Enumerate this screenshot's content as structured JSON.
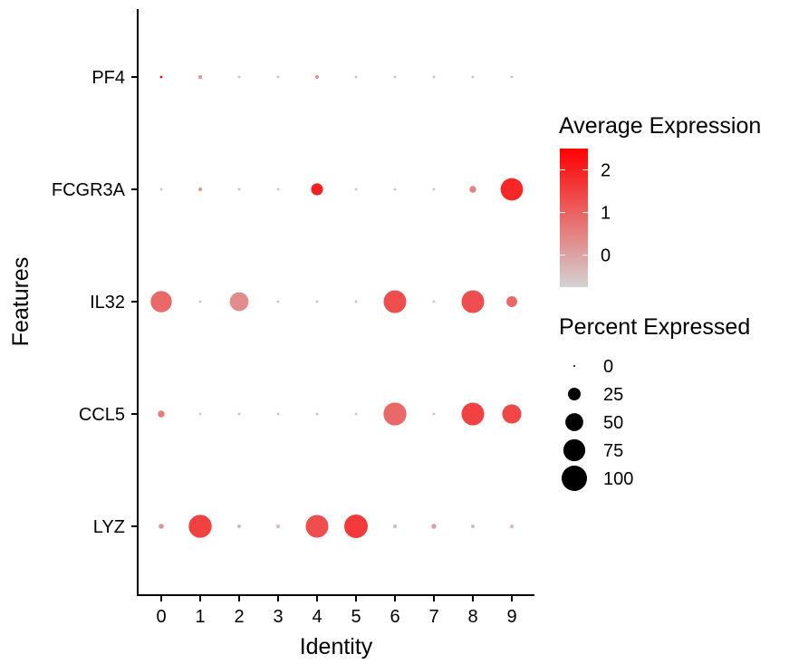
{
  "chart_data": {
    "type": "dotplot",
    "title": "",
    "xlabel": "Identity",
    "ylabel": "Features",
    "x_categories": [
      "0",
      "1",
      "2",
      "3",
      "4",
      "5",
      "6",
      "7",
      "8",
      "9"
    ],
    "y_categories": [
      "LYZ",
      "CCL5",
      "IL32",
      "FCGR3A",
      "PF4"
    ],
    "color_scale": {
      "title": "Average Expression",
      "low_color": "#d3d3d3",
      "high_color": "#ff0000",
      "min": -0.75,
      "max": 2.5,
      "ticks": [
        "0",
        "1",
        "2"
      ]
    },
    "size_scale": {
      "title": "Percent Expressed",
      "max": 100,
      "breaks": [
        "0",
        "25",
        "50",
        "75",
        "100"
      ]
    },
    "points": [
      {
        "feature": "PF4",
        "identity": "0",
        "pct": 1,
        "avg": 2.4
      },
      {
        "feature": "PF4",
        "identity": "1",
        "pct": 2,
        "avg": 0.3
      },
      {
        "feature": "PF4",
        "identity": "2",
        "pct": 1,
        "avg": -0.4
      },
      {
        "feature": "PF4",
        "identity": "3",
        "pct": 1,
        "avg": -0.4
      },
      {
        "feature": "PF4",
        "identity": "4",
        "pct": 2,
        "avg": 0.3
      },
      {
        "feature": "PF4",
        "identity": "5",
        "pct": 1,
        "avg": -0.4
      },
      {
        "feature": "PF4",
        "identity": "6",
        "pct": 1,
        "avg": -0.4
      },
      {
        "feature": "PF4",
        "identity": "7",
        "pct": 1,
        "avg": -0.4
      },
      {
        "feature": "PF4",
        "identity": "8",
        "pct": 1,
        "avg": -0.4
      },
      {
        "feature": "PF4",
        "identity": "9",
        "pct": 1,
        "avg": -0.4
      },
      {
        "feature": "FCGR3A",
        "identity": "0",
        "pct": 1,
        "avg": -0.4
      },
      {
        "feature": "FCGR3A",
        "identity": "1",
        "pct": 2,
        "avg": 0.2
      },
      {
        "feature": "FCGR3A",
        "identity": "2",
        "pct": 1,
        "avg": -0.4
      },
      {
        "feature": "FCGR3A",
        "identity": "3",
        "pct": 1,
        "avg": -0.4
      },
      {
        "feature": "FCGR3A",
        "identity": "4",
        "pct": 22,
        "avg": 2.0
      },
      {
        "feature": "FCGR3A",
        "identity": "5",
        "pct": 1,
        "avg": -0.4
      },
      {
        "feature": "FCGR3A",
        "identity": "6",
        "pct": 1,
        "avg": -0.4
      },
      {
        "feature": "FCGR3A",
        "identity": "7",
        "pct": 1,
        "avg": -0.4
      },
      {
        "feature": "FCGR3A",
        "identity": "8",
        "pct": 7,
        "avg": 0.5
      },
      {
        "feature": "FCGR3A",
        "identity": "9",
        "pct": 78,
        "avg": 1.9
      },
      {
        "feature": "IL32",
        "identity": "0",
        "pct": 70,
        "avg": 0.9
      },
      {
        "feature": "IL32",
        "identity": "1",
        "pct": 1,
        "avg": -0.4
      },
      {
        "feature": "IL32",
        "identity": "2",
        "pct": 55,
        "avg": 0.35
      },
      {
        "feature": "IL32",
        "identity": "3",
        "pct": 1,
        "avg": -0.4
      },
      {
        "feature": "IL32",
        "identity": "4",
        "pct": 1,
        "avg": -0.4
      },
      {
        "feature": "IL32",
        "identity": "5",
        "pct": 1,
        "avg": -0.4
      },
      {
        "feature": "IL32",
        "identity": "6",
        "pct": 80,
        "avg": 1.3
      },
      {
        "feature": "IL32",
        "identity": "7",
        "pct": 1,
        "avg": -0.4
      },
      {
        "feature": "IL32",
        "identity": "8",
        "pct": 80,
        "avg": 1.3
      },
      {
        "feature": "IL32",
        "identity": "9",
        "pct": 18,
        "avg": 0.9
      },
      {
        "feature": "CCL5",
        "identity": "0",
        "pct": 7,
        "avg": 0.6
      },
      {
        "feature": "CCL5",
        "identity": "1",
        "pct": 1,
        "avg": -0.4
      },
      {
        "feature": "CCL5",
        "identity": "2",
        "pct": 1,
        "avg": -0.4
      },
      {
        "feature": "CCL5",
        "identity": "3",
        "pct": 1,
        "avg": -0.4
      },
      {
        "feature": "CCL5",
        "identity": "4",
        "pct": 1,
        "avg": -0.4
      },
      {
        "feature": "CCL5",
        "identity": "5",
        "pct": 1,
        "avg": -0.4
      },
      {
        "feature": "CCL5",
        "identity": "6",
        "pct": 82,
        "avg": 0.9
      },
      {
        "feature": "CCL5",
        "identity": "7",
        "pct": 1,
        "avg": -0.4
      },
      {
        "feature": "CCL5",
        "identity": "8",
        "pct": 80,
        "avg": 1.5
      },
      {
        "feature": "CCL5",
        "identity": "9",
        "pct": 57,
        "avg": 1.4
      },
      {
        "feature": "LYZ",
        "identity": "0",
        "pct": 4,
        "avg": 0.2
      },
      {
        "feature": "LYZ",
        "identity": "1",
        "pct": 82,
        "avg": 1.5
      },
      {
        "feature": "LYZ",
        "identity": "2",
        "pct": 2,
        "avg": -0.3
      },
      {
        "feature": "LYZ",
        "identity": "3",
        "pct": 2,
        "avg": -0.3
      },
      {
        "feature": "LYZ",
        "identity": "4",
        "pct": 80,
        "avg": 1.3
      },
      {
        "feature": "LYZ",
        "identity": "5",
        "pct": 86,
        "avg": 1.6
      },
      {
        "feature": "LYZ",
        "identity": "6",
        "pct": 2,
        "avg": -0.3
      },
      {
        "feature": "LYZ",
        "identity": "7",
        "pct": 4,
        "avg": 0.0
      },
      {
        "feature": "LYZ",
        "identity": "8",
        "pct": 2,
        "avg": -0.3
      },
      {
        "feature": "LYZ",
        "identity": "9",
        "pct": 2,
        "avg": -0.3
      }
    ]
  }
}
